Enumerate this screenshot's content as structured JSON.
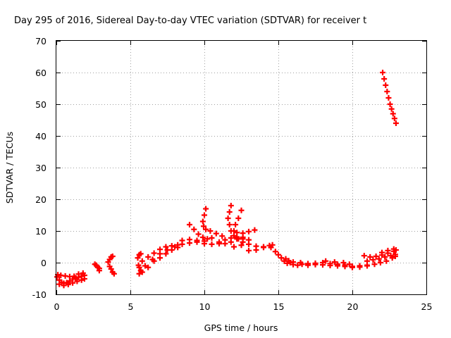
{
  "chart_data": {
    "type": "scatter",
    "title": "Day 295 of 2016, Sidereal Day-to-day VTEC variation (SDTVAR) for receiver t",
    "xlabel": "GPS time / hours",
    "ylabel": "SDTVAR / TECUs",
    "xlim": [
      0,
      25
    ],
    "ylim": [
      -10,
      70
    ],
    "xticks": [
      "0",
      "5",
      "10",
      "15",
      "20",
      "25"
    ],
    "yticks": [
      "-10",
      "0",
      "10",
      "20",
      "30",
      "40",
      "50",
      "60",
      "70"
    ],
    "grid": true,
    "color": "#ff0000",
    "marker": "plus",
    "series": [
      {
        "points": [
          [
            0.05,
            -4.5
          ],
          [
            0.2,
            -5.5
          ],
          [
            0.35,
            -6.2
          ],
          [
            0.5,
            -6.5
          ],
          [
            0.7,
            -6.3
          ],
          [
            0.9,
            -5.8
          ],
          [
            1.1,
            -5.2
          ],
          [
            1.3,
            -4.8
          ],
          [
            1.5,
            -4.6
          ],
          [
            1.7,
            -4.3
          ],
          [
            1.9,
            -4.0
          ],
          [
            0.1,
            -3.8
          ],
          [
            0.3,
            -4.0
          ],
          [
            0.6,
            -4.2
          ],
          [
            0.9,
            -4.4
          ],
          [
            1.2,
            -4.3
          ],
          [
            1.5,
            -3.6
          ],
          [
            1.8,
            -3.3
          ],
          [
            0.2,
            -6.8
          ],
          [
            0.5,
            -7.2
          ],
          [
            0.8,
            -6.9
          ],
          [
            1.1,
            -6.4
          ],
          [
            1.4,
            -5.9
          ],
          [
            1.7,
            -5.5
          ],
          [
            1.9,
            -5.1
          ],
          [
            2.6,
            -0.5
          ],
          [
            2.8,
            -1.5
          ],
          [
            2.9,
            -2.5
          ],
          [
            2.7,
            -0.8
          ],
          [
            2.9,
            -1.8
          ],
          [
            3.5,
            0.2
          ],
          [
            3.6,
            1.0
          ],
          [
            3.7,
            1.8
          ],
          [
            3.8,
            2.0
          ],
          [
            3.7,
            -2.0
          ],
          [
            3.8,
            -3.0
          ],
          [
            3.9,
            -3.5
          ],
          [
            3.6,
            -1.2
          ],
          [
            5.5,
            1.5
          ],
          [
            5.6,
            2.5
          ],
          [
            5.7,
            2.8
          ],
          [
            5.55,
            -0.8
          ],
          [
            5.6,
            -1.5
          ],
          [
            5.7,
            -2.5
          ],
          [
            5.6,
            -3.5
          ],
          [
            5.8,
            -3.0
          ],
          [
            6.2,
            -1.5
          ],
          [
            6.6,
            0.5
          ],
          [
            7.0,
            1.5
          ],
          [
            7.4,
            2.8
          ],
          [
            7.8,
            4.0
          ],
          [
            8.2,
            4.8
          ],
          [
            5.8,
            0.5
          ],
          [
            6.2,
            1.8
          ],
          [
            6.6,
            3.0
          ],
          [
            7.0,
            4.2
          ],
          [
            7.4,
            5.0
          ],
          [
            7.8,
            5.3
          ],
          [
            8.2,
            5.6
          ],
          [
            6.0,
            -1.0
          ],
          [
            6.5,
            1.0
          ],
          [
            7.0,
            2.8
          ],
          [
            7.5,
            4.0
          ],
          [
            8.0,
            5.0
          ],
          [
            8.5,
            5.8
          ],
          [
            9.0,
            6.2
          ],
          [
            9.5,
            6.5
          ],
          [
            10.0,
            6.8
          ],
          [
            8.5,
            7.0
          ],
          [
            9.0,
            7.3
          ],
          [
            9.5,
            7.0
          ],
          [
            10.0,
            6.0
          ],
          [
            10.5,
            5.8
          ],
          [
            11.0,
            6.0
          ],
          [
            9.0,
            12.0
          ],
          [
            9.3,
            10.5
          ],
          [
            9.6,
            9.0
          ],
          [
            9.9,
            8.0
          ],
          [
            10.2,
            7.5
          ],
          [
            10.5,
            7.8
          ],
          [
            10.1,
            17.0
          ],
          [
            10.0,
            15.0
          ],
          [
            9.9,
            13.0
          ],
          [
            9.95,
            11.5
          ],
          [
            10.1,
            10.5
          ],
          [
            10.4,
            10.0
          ],
          [
            10.8,
            9.2
          ],
          [
            11.2,
            8.4
          ],
          [
            11.0,
            6.5
          ],
          [
            11.4,
            7.2
          ],
          [
            11.8,
            7.8
          ],
          [
            12.2,
            8.0
          ],
          [
            12.6,
            7.5
          ],
          [
            11.4,
            6.0
          ],
          [
            11.8,
            6.5
          ],
          [
            12.2,
            7.5
          ],
          [
            12.6,
            8.0
          ],
          [
            13.0,
            7.2
          ],
          [
            11.8,
            18.0
          ],
          [
            11.7,
            16.0
          ],
          [
            11.6,
            14.0
          ],
          [
            11.7,
            12.0
          ],
          [
            11.8,
            10.0
          ],
          [
            12.0,
            8.5
          ],
          [
            12.3,
            7.5
          ],
          [
            12.6,
            6.5
          ],
          [
            12.5,
            16.5
          ],
          [
            12.3,
            14.0
          ],
          [
            12.1,
            12.0
          ],
          [
            12.0,
            10.0
          ],
          [
            12.2,
            9.5
          ],
          [
            12.6,
            9.3
          ],
          [
            13.0,
            9.8
          ],
          [
            13.4,
            10.3
          ],
          [
            12.0,
            5.0
          ],
          [
            12.5,
            5.5
          ],
          [
            13.0,
            5.8
          ],
          [
            13.5,
            5.2
          ],
          [
            14.0,
            5.0
          ],
          [
            14.5,
            4.8
          ],
          [
            13.0,
            3.8
          ],
          [
            13.5,
            4.0
          ],
          [
            14.0,
            4.8
          ],
          [
            14.4,
            5.4
          ],
          [
            14.6,
            5.6
          ],
          [
            14.8,
            3.5
          ],
          [
            15.0,
            2.5
          ],
          [
            15.2,
            1.5
          ],
          [
            15.4,
            0.5
          ],
          [
            15.6,
            -0.2
          ],
          [
            15.8,
            0.0
          ],
          [
            16.0,
            0.2
          ],
          [
            15.5,
            1.2
          ],
          [
            15.7,
            0.6
          ],
          [
            16.0,
            -0.6
          ],
          [
            16.3,
            -0.8
          ],
          [
            16.6,
            -0.5
          ],
          [
            16.5,
            0.0
          ],
          [
            17.0,
            -0.3
          ],
          [
            17.5,
            -0.2
          ],
          [
            18.0,
            0.0
          ],
          [
            18.5,
            -0.3
          ],
          [
            19.0,
            -0.5
          ],
          [
            19.5,
            -0.8
          ],
          [
            20.0,
            -1.2
          ],
          [
            20.5,
            -1.0
          ],
          [
            21.0,
            -0.8
          ],
          [
            17.0,
            -0.8
          ],
          [
            17.5,
            -0.6
          ],
          [
            18.0,
            -0.7
          ],
          [
            18.5,
            -0.9
          ],
          [
            19.0,
            -1.0
          ],
          [
            19.5,
            -1.2
          ],
          [
            20.0,
            -1.5
          ],
          [
            20.5,
            -1.4
          ],
          [
            21.0,
            -1.0
          ],
          [
            18.2,
            0.5
          ],
          [
            18.8,
            0.2
          ],
          [
            19.4,
            0.0
          ],
          [
            19.8,
            -0.5
          ],
          [
            20.8,
            2.2
          ],
          [
            21.2,
            1.8
          ],
          [
            21.6,
            2.0
          ],
          [
            22.0,
            2.4
          ],
          [
            22.4,
            3.0
          ],
          [
            22.8,
            3.6
          ],
          [
            21.0,
            0.5
          ],
          [
            21.4,
            0.9
          ],
          [
            21.8,
            1.2
          ],
          [
            22.2,
            1.8
          ],
          [
            22.6,
            2.2
          ],
          [
            22.9,
            2.6
          ],
          [
            21.5,
            -0.5
          ],
          [
            21.9,
            0.0
          ],
          [
            22.3,
            0.5
          ],
          [
            22.7,
            1.5
          ],
          [
            22.9,
            2.0
          ],
          [
            22.0,
            3.2
          ],
          [
            22.4,
            3.8
          ],
          [
            22.8,
            4.3
          ],
          [
            22.95,
            4.0
          ],
          [
            22.05,
            60.0
          ],
          [
            22.15,
            58.0
          ],
          [
            22.25,
            56.0
          ],
          [
            22.35,
            54.0
          ],
          [
            22.45,
            52.0
          ],
          [
            22.55,
            50.0
          ],
          [
            22.65,
            48.5
          ],
          [
            22.75,
            47.0
          ],
          [
            22.85,
            45.5
          ],
          [
            22.95,
            44.0
          ]
        ]
      }
    ]
  }
}
